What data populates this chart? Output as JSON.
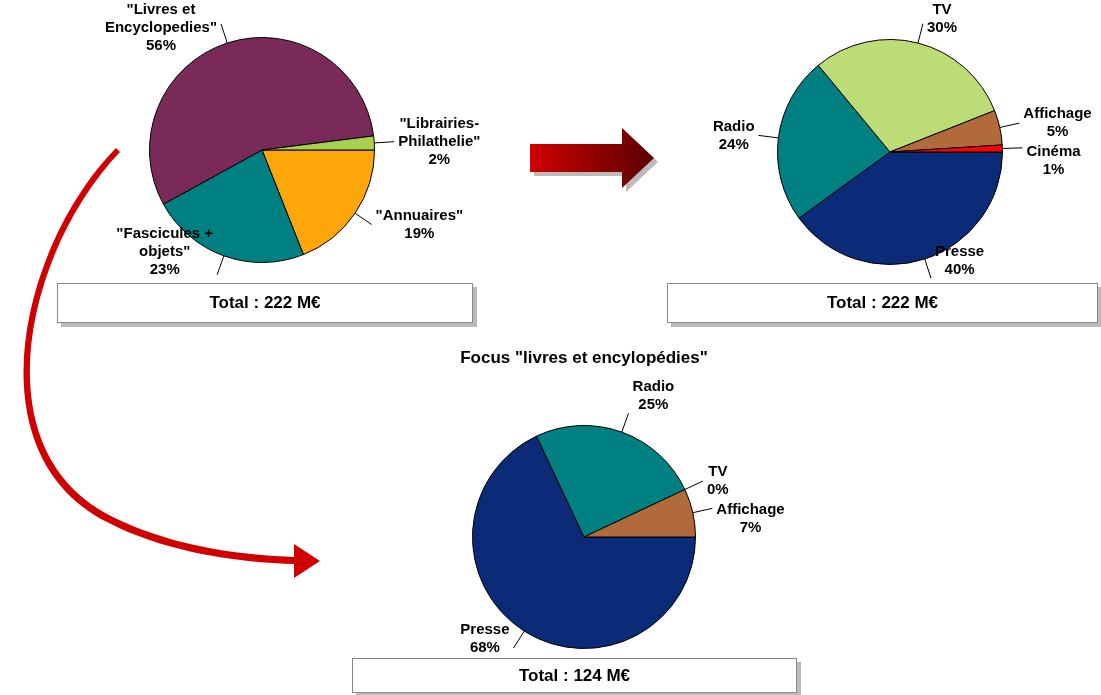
{
  "chart_data": [
    {
      "type": "pie",
      "categories": [
        "\"Annuaires\"",
        "\"Fascicules + objets\"",
        "\"Livres et Encyclopedies\"",
        "\"Librairies-Philathelie\""
      ],
      "values": [
        19,
        23,
        56,
        2
      ],
      "colors": [
        "#ffa60a",
        "#008080",
        "#7a2a58",
        "#a8d050"
      ],
      "value_labels": [
        "19%",
        "23%",
        "56%",
        "2%"
      ],
      "annotations": [
        "Total : 222 M€"
      ]
    },
    {
      "type": "pie",
      "categories": [
        "Presse",
        "Radio",
        "TV",
        "Affichage",
        "Cinéma"
      ],
      "values": [
        40,
        24,
        30,
        5,
        1
      ],
      "colors": [
        "#0b2a78",
        "#008080",
        "#bcdc78",
        "#b06a3c",
        "#ff0000"
      ],
      "value_labels": [
        "40%",
        "24%",
        "30%",
        "5%",
        "1%"
      ],
      "annotations": [
        "Total : 222 M€"
      ]
    },
    {
      "type": "pie",
      "title": "Focus \"livres et encylopédies\"",
      "categories": [
        "Presse",
        "Radio",
        "TV",
        "Affichage"
      ],
      "values": [
        68,
        25,
        0,
        7
      ],
      "colors": [
        "#0b2a78",
        "#008080",
        "#bcdc78",
        "#b06a3c"
      ],
      "value_labels": [
        "68%",
        "25%",
        "0%",
        "7%"
      ],
      "annotations": [
        "Total : 124 M€"
      ]
    }
  ]
}
